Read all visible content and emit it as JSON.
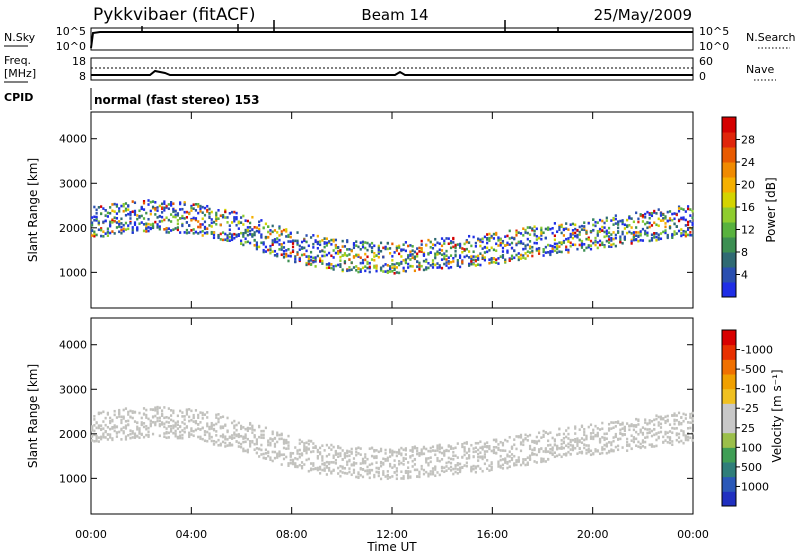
{
  "header": {
    "station": "Pykkvibaer (fitACF)",
    "beam": "Beam 14",
    "date": "25/May/2009"
  },
  "top_panels": {
    "nsky_label": "N.Sky",
    "nsky_tick_hi": "10^5",
    "nsky_tick_lo": "10^0",
    "nsearch_label": "N.Search",
    "nsearch_tick_hi": "10^5",
    "nsearch_tick_lo": "10^0",
    "freq_label": "Freq.",
    "freq_unit": "[MHz]",
    "freq_tick_hi": "18",
    "freq_tick_lo": "8",
    "nave_label": "Nave",
    "nave_tick_hi": "60",
    "nave_tick_lo": "0",
    "cpid_label": "CPID",
    "cpid_text": "normal (fast stereo) 153"
  },
  "colors": {
    "power_scale": [
      "#1f2ee6",
      "#2a4fb0",
      "#2f6a73",
      "#3c8f52",
      "#58b23e",
      "#8fcd2f",
      "#d4d400",
      "#f5b000",
      "#f08a00",
      "#e85a00",
      "#e0250a",
      "#d40000"
    ],
    "velocity_scale": [
      "#2030c0",
      "#2a58b8",
      "#2f7e7a",
      "#3f9e55",
      "#9bbf4a",
      "#c8c8c8",
      "#c8c8c8",
      "#f0c020",
      "#f0a000",
      "#f07000",
      "#e83000",
      "#d80000"
    ],
    "power_echo": "#6aa85a",
    "velocity_echo": "#c2c2be"
  },
  "chart_data": [
    {
      "type": "heatmap",
      "name": "power",
      "ylabel": "Slant Range [km]",
      "ylim": [
        200,
        4600
      ],
      "yticks": [
        1000,
        2000,
        3000,
        4000
      ],
      "xlim": [
        0,
        24
      ],
      "xticks": [
        "00:00",
        "04:00",
        "08:00",
        "12:00",
        "16:00",
        "20:00",
        "00:00"
      ],
      "colorbar_label": "Power [dB]",
      "colorbar_ticks": [
        "4",
        "8",
        "12",
        "16",
        "20",
        "24",
        "28"
      ],
      "band_centre_km": [
        [
          0,
          2150
        ],
        [
          2,
          2300
        ],
        [
          4,
          2250
        ],
        [
          6,
          2000
        ],
        [
          8,
          1600
        ],
        [
          10,
          1400
        ],
        [
          12,
          1350
        ],
        [
          14,
          1450
        ],
        [
          16,
          1550
        ],
        [
          18,
          1750
        ],
        [
          20,
          1900
        ],
        [
          22,
          2050
        ],
        [
          24,
          2200
        ]
      ]
    },
    {
      "type": "heatmap",
      "name": "velocity",
      "ylabel": "Slant Range [km]",
      "ylim": [
        200,
        4600
      ],
      "yticks": [
        1000,
        2000,
        3000,
        4000
      ],
      "xlim": [
        0,
        24
      ],
      "xticks": [
        "00:00",
        "04:00",
        "08:00",
        "12:00",
        "16:00",
        "20:00",
        "00:00"
      ],
      "xlabel": "Time UT",
      "colorbar_label": "Velocity [m s⁻¹]",
      "colorbar_ticks": [
        "1000",
        "500",
        "100",
        "25",
        "-25",
        "-100",
        "-500",
        "-1000"
      ]
    }
  ]
}
